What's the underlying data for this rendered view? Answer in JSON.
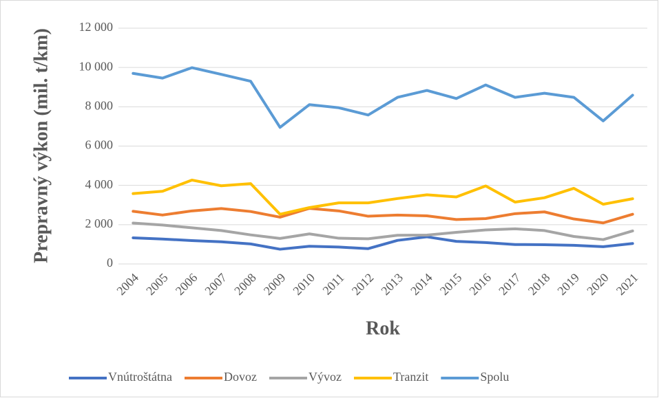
{
  "chart_data": {
    "type": "line",
    "y_label": "Prepravný výkon (mil. t/km)",
    "x_label": "Rok",
    "categories": [
      "2004",
      "2005",
      "2006",
      "2007",
      "2008",
      "2009",
      "2010",
      "2011",
      "2012",
      "2013",
      "2014",
      "2015",
      "2016",
      "2017",
      "2018",
      "2019",
      "2020",
      "2021"
    ],
    "series": [
      {
        "name": "Vnútroštátna",
        "color": "#4472c4",
        "values": [
          1330,
          1270,
          1190,
          1130,
          1020,
          750,
          900,
          860,
          780,
          1200,
          1380,
          1150,
          1090,
          990,
          980,
          950,
          880,
          1040
        ]
      },
      {
        "name": "Dovoz",
        "color": "#ed7d31",
        "values": [
          2680,
          2490,
          2700,
          2820,
          2670,
          2380,
          2830,
          2700,
          2430,
          2490,
          2450,
          2260,
          2310,
          2560,
          2650,
          2290,
          2090,
          2530
        ]
      },
      {
        "name": "Vývoz",
        "color": "#a5a5a5",
        "values": [
          2080,
          1980,
          1840,
          1700,
          1480,
          1300,
          1530,
          1310,
          1280,
          1460,
          1470,
          1610,
          1730,
          1790,
          1700,
          1400,
          1240,
          1680
        ]
      },
      {
        "name": "Tranzit",
        "color": "#ffc000",
        "values": [
          3580,
          3700,
          4270,
          3980,
          4090,
          2530,
          2870,
          3110,
          3110,
          3330,
          3520,
          3410,
          3970,
          3150,
          3370,
          3850,
          3040,
          3320
        ]
      },
      {
        "name": "Spolu",
        "color": "#5b9bd5",
        "values": [
          9700,
          9460,
          9990,
          9650,
          9300,
          6950,
          8110,
          7950,
          7580,
          8480,
          8830,
          8420,
          9110,
          8480,
          8690,
          8480,
          7280,
          8590
        ]
      }
    ],
    "ylim": [
      0,
      12000
    ],
    "yticks": [
      0,
      {
        "value": 2000,
        "label": "2 000"
      },
      {
        "value": 4000,
        "label": "4 000"
      },
      {
        "value": 6000,
        "label": "6 000"
      },
      {
        "value": 8000,
        "label": "8 000"
      },
      {
        "value": 10000,
        "label": "10 000"
      },
      {
        "value": 12000,
        "label": "12 000"
      }
    ],
    "grid": true,
    "legend": "bottom"
  }
}
